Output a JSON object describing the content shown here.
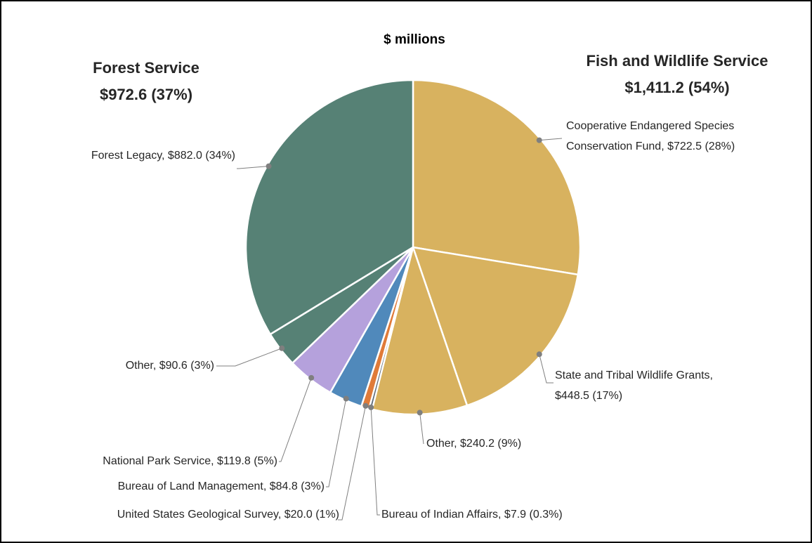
{
  "chart_data": {
    "type": "pie",
    "title": "$ millions",
    "start_angle": 0,
    "direction": "clockwise",
    "values": [
      722.5,
      448.5,
      240.2,
      7.9,
      20.0,
      84.8,
      119.8,
      90.6,
      882.0
    ],
    "labels": [
      [
        "Cooperative Endangered Species",
        "Conservation Fund, $722.5 (28%)"
      ],
      [
        "State and Tribal Wildlife Grants,",
        "$448.5 (17%)"
      ],
      [
        "Other, $240.2 (9%)"
      ],
      [
        "Bureau of Indian Affairs, $7.9 (0.3%)"
      ],
      [
        "United States Geological Survey, $20.0 (1%)"
      ],
      [
        "Bureau of Land Management, $84.8 (3%)"
      ],
      [
        "National Park Service, $119.8 (5%)"
      ],
      [
        "Other, $90.6 (3%)"
      ],
      [
        "Forest Legacy, $882.0 (34%)"
      ]
    ],
    "colors": [
      "#d8b25f",
      "#d8b25f",
      "#d8b25f",
      "#5b6675",
      "#e07b39",
      "#5089bb",
      "#b5a1dc",
      "#568175",
      "#568175"
    ],
    "groups": [
      {
        "name": "Forest Service",
        "value": 972.6,
        "value_label": "$972.6 (37%)",
        "color": "#436b5f"
      },
      {
        "name": "Fish and Wildlife Service",
        "value": 1411.2,
        "value_label": "$1,411.2 (54%)",
        "color": "#c9a049"
      }
    ]
  }
}
